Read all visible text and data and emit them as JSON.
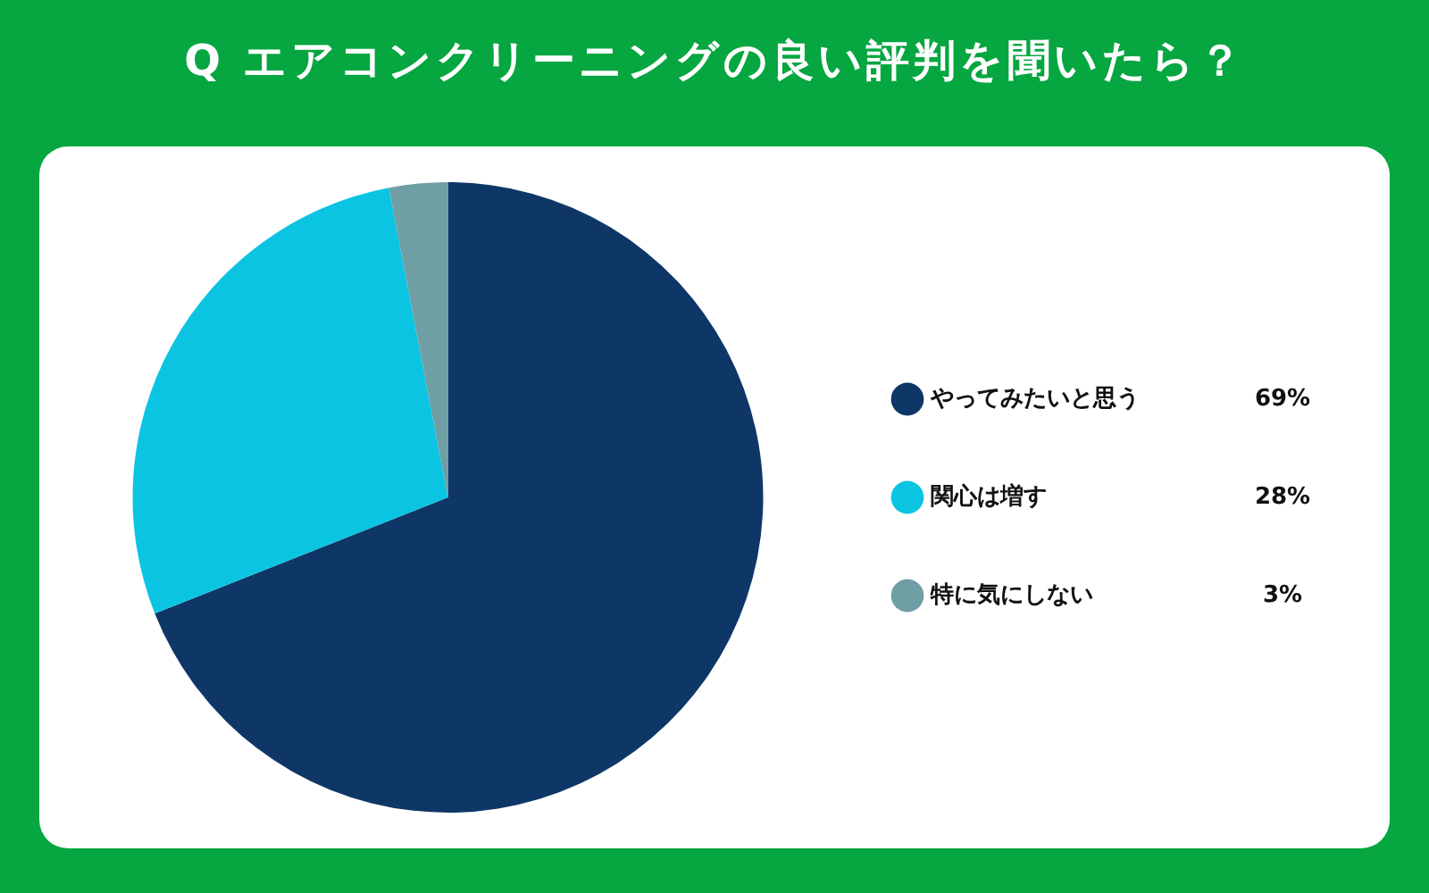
{
  "chart_data": {
    "type": "pie",
    "title": "Q エアコンクリーニングの良い評判を聞いたら？",
    "categories": [
      "やってみたいと思う",
      "関心は増す",
      "特に気にしない"
    ],
    "values": [
      69,
      28,
      3
    ],
    "colors": [
      "#0e3767",
      "#0bc4e2",
      "#6f9fa4"
    ],
    "value_labels": [
      "69%",
      "28%",
      "3%"
    ],
    "legend": "right"
  }
}
